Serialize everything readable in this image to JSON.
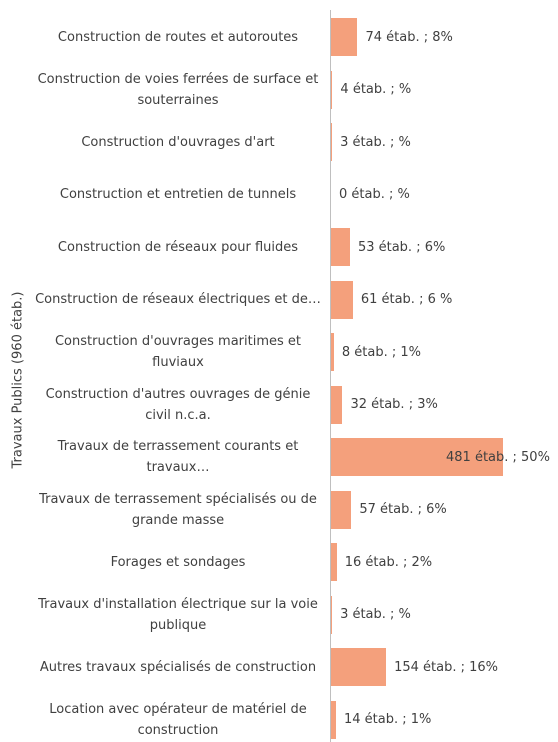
{
  "chart_data": {
    "type": "bar",
    "orientation": "horizontal",
    "y_axis_label": "Travaux Publics (960 étab.)",
    "categories": [
      "Construction de routes et autoroutes",
      "Construction de voies ferrées de surface et souterraines",
      "Construction d'ouvrages d'art",
      "Construction et entretien de tunnels",
      "Construction de réseaux pour fluides",
      "Construction de réseaux électriques et de…",
      "Construction d'ouvrages maritimes et fluviaux",
      "Construction d'autres ouvrages de génie civil n.c.a.",
      "Travaux de terrassement courants et travaux…",
      "Travaux de terrassement spécialisés ou de grande masse",
      "Forages et sondages",
      "Travaux d'installation électrique sur la voie publique",
      "Autres travaux spécialisés de construction",
      "Location avec opérateur de matériel de construction"
    ],
    "values": [
      74,
      4,
      3,
      0,
      53,
      61,
      8,
      32,
      481,
      57,
      16,
      3,
      154,
      14
    ],
    "value_labels": [
      "74 étab. ; 8%",
      "4 étab. ; %",
      "3 étab. ; %",
      "0 étab. ; %",
      "53 étab. ; 6%",
      "61 étab. ; 6 %",
      "8 étab. ; 1%",
      "32 étab. ; 3%",
      "481 étab. ; 50%",
      "57 étab. ; 6%",
      "16 étab. ; 2%",
      "3 étab. ; %",
      "154 étab. ; 16%",
      "14 étab. ; 1%"
    ],
    "color": "#f4a07c"
  }
}
